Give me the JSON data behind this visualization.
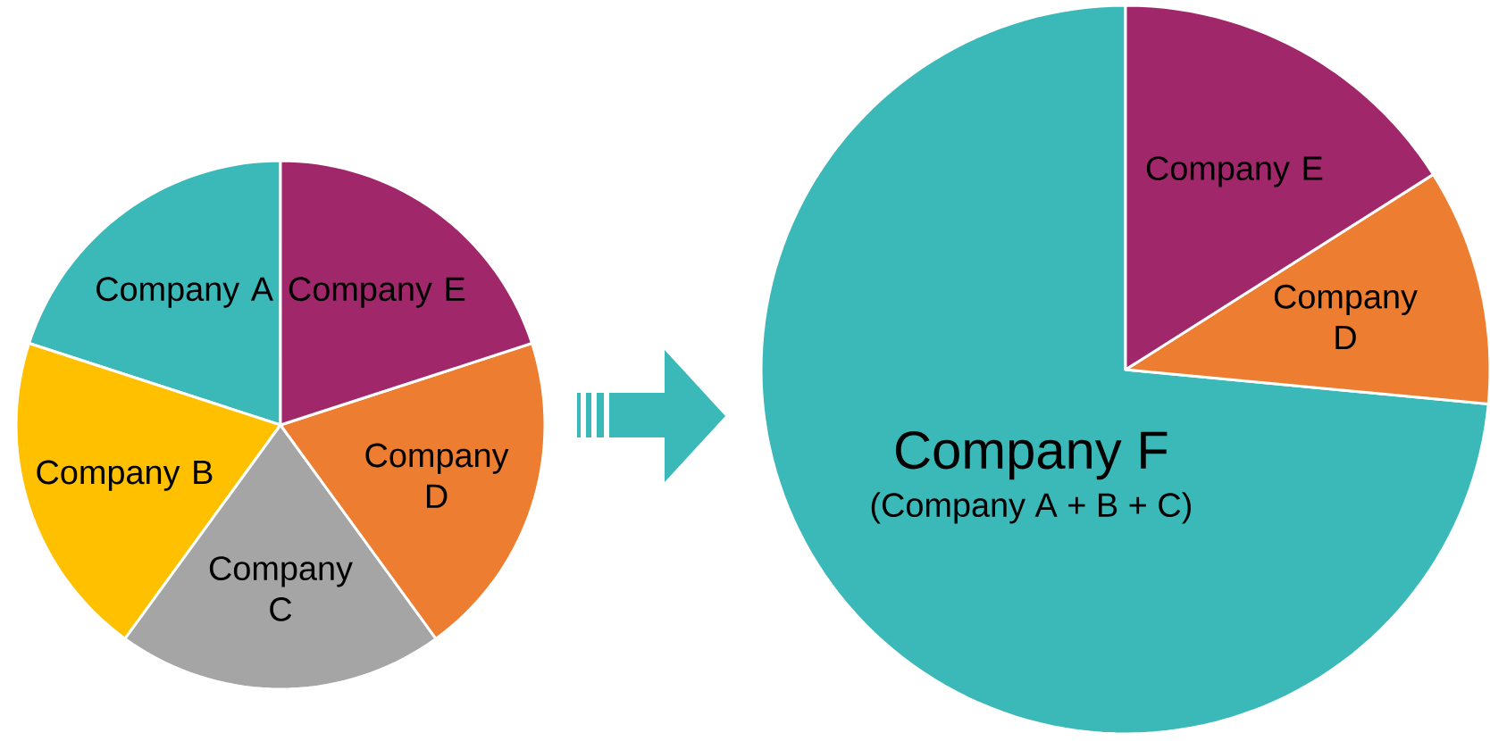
{
  "chart_data": [
    {
      "type": "pie",
      "categories": [
        "Company A",
        "Company B",
        "Company C",
        "Company D",
        "Company E"
      ],
      "values": [
        20,
        20,
        20,
        20,
        20
      ],
      "colors": [
        "#3bb8b8",
        "#ffc000",
        "#a5a5a5",
        "#ed7d31",
        "#a0276a"
      ]
    },
    {
      "type": "pie",
      "categories": [
        "Company F",
        "Company D",
        "Company E"
      ],
      "values": [
        73.5,
        10.5,
        16
      ],
      "colors": [
        "#3bb8b8",
        "#ed7d31",
        "#a0276a"
      ],
      "annotations": [
        "(Company A + B + C)"
      ]
    }
  ]
}
